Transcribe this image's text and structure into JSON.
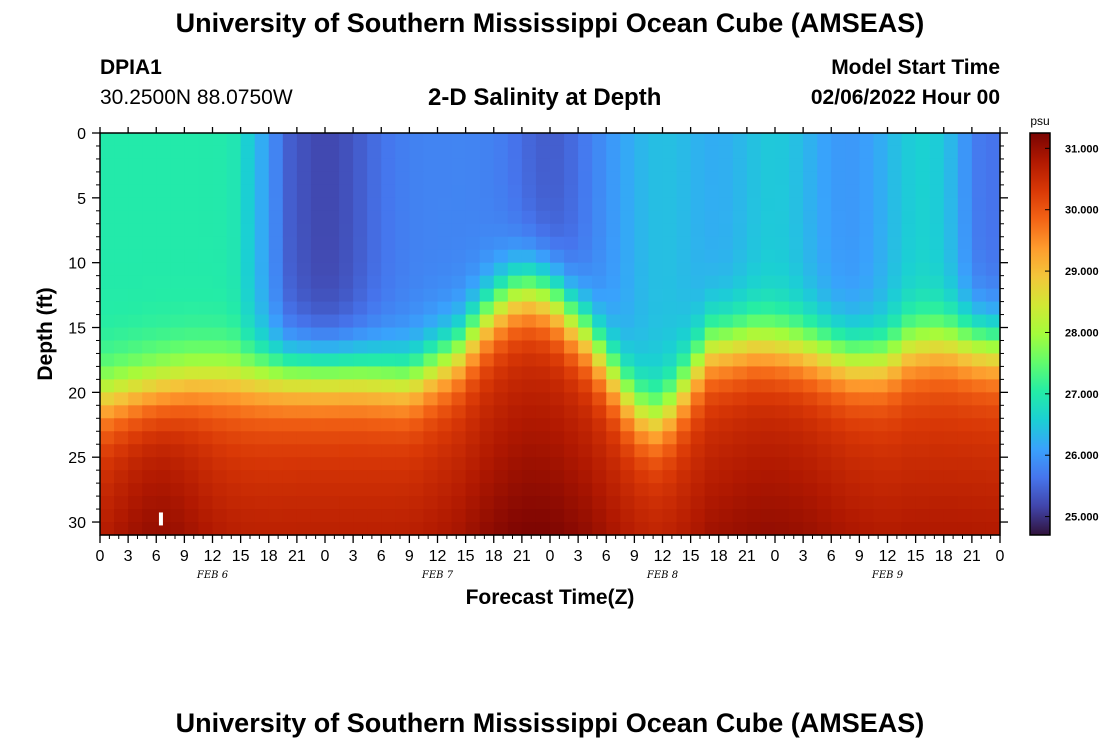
{
  "page": {
    "title_top": "University of Southern Mississippi Ocean Cube (AMSEAS)",
    "title_bottom": "University of Southern Mississippi Ocean Cube (AMSEAS)",
    "station_id": "DPIA1",
    "station_coords": "30.2500N  88.0750W",
    "plot_title": "2-D Salinity at Depth",
    "start_label": "Model Start Time",
    "start_value": "02/06/2022 Hour 00"
  },
  "chart_data": {
    "type": "heatmap",
    "title": "2-D Salinity at Depth",
    "xlabel": "Forecast Time(Z)",
    "ylabel": "Depth (ft)",
    "x_hours_range": [
      0,
      96
    ],
    "x_ticks": [
      "0",
      "3",
      "6",
      "9",
      "12",
      "15",
      "18",
      "21",
      "0",
      "3",
      "6",
      "9",
      "12",
      "15",
      "18",
      "21",
      "0",
      "3",
      "6",
      "9",
      "12",
      "15",
      "18",
      "21",
      "0",
      "3",
      "6",
      "9",
      "12",
      "15",
      "18",
      "21",
      "0"
    ],
    "day_labels": [
      "FEB 6",
      "FEB 7",
      "FEB 8",
      "FEB 9"
    ],
    "y_ticks": [
      "0",
      "5",
      "10",
      "15",
      "20",
      "25",
      "30"
    ],
    "ylim": [
      0,
      31
    ],
    "colorbar": {
      "unit": "psu",
      "range": [
        24.7,
        31.25
      ],
      "ticks": [
        "31.000",
        "30.000",
        "29.000",
        "28.000",
        "27.000",
        "26.000",
        "25.000"
      ],
      "colors": [
        "#30123b",
        "#4145ab",
        "#4675ed",
        "#39a2fc",
        "#1bcfd4",
        "#24eca6",
        "#61fc6c",
        "#a4fc3b",
        "#d1e834",
        "#f3c63a",
        "#fe9b2d",
        "#f36315",
        "#d93806",
        "#b11901",
        "#7a0402"
      ]
    },
    "marker": {
      "hour": 6.5,
      "depth": 29.8
    },
    "cline_depth_by_hour": [
      [
        0,
        20.5
      ],
      [
        6,
        19.5
      ],
      [
        10,
        19.0
      ],
      [
        16,
        18.8
      ],
      [
        21,
        18.5
      ],
      [
        27,
        18.5
      ],
      [
        33,
        19.0
      ],
      [
        38,
        17.0
      ],
      [
        42,
        13.5
      ],
      [
        45,
        12.0
      ],
      [
        48,
        12.5
      ],
      [
        52,
        15.5
      ],
      [
        57,
        21.0
      ],
      [
        59,
        22.0
      ],
      [
        61,
        21.0
      ],
      [
        65,
        16.5
      ],
      [
        70,
        16.0
      ],
      [
        75,
        16.5
      ],
      [
        80,
        17.5
      ],
      [
        84,
        17.5
      ],
      [
        86,
        16.5
      ],
      [
        90,
        16.0
      ],
      [
        96,
        16.5
      ]
    ]
  }
}
